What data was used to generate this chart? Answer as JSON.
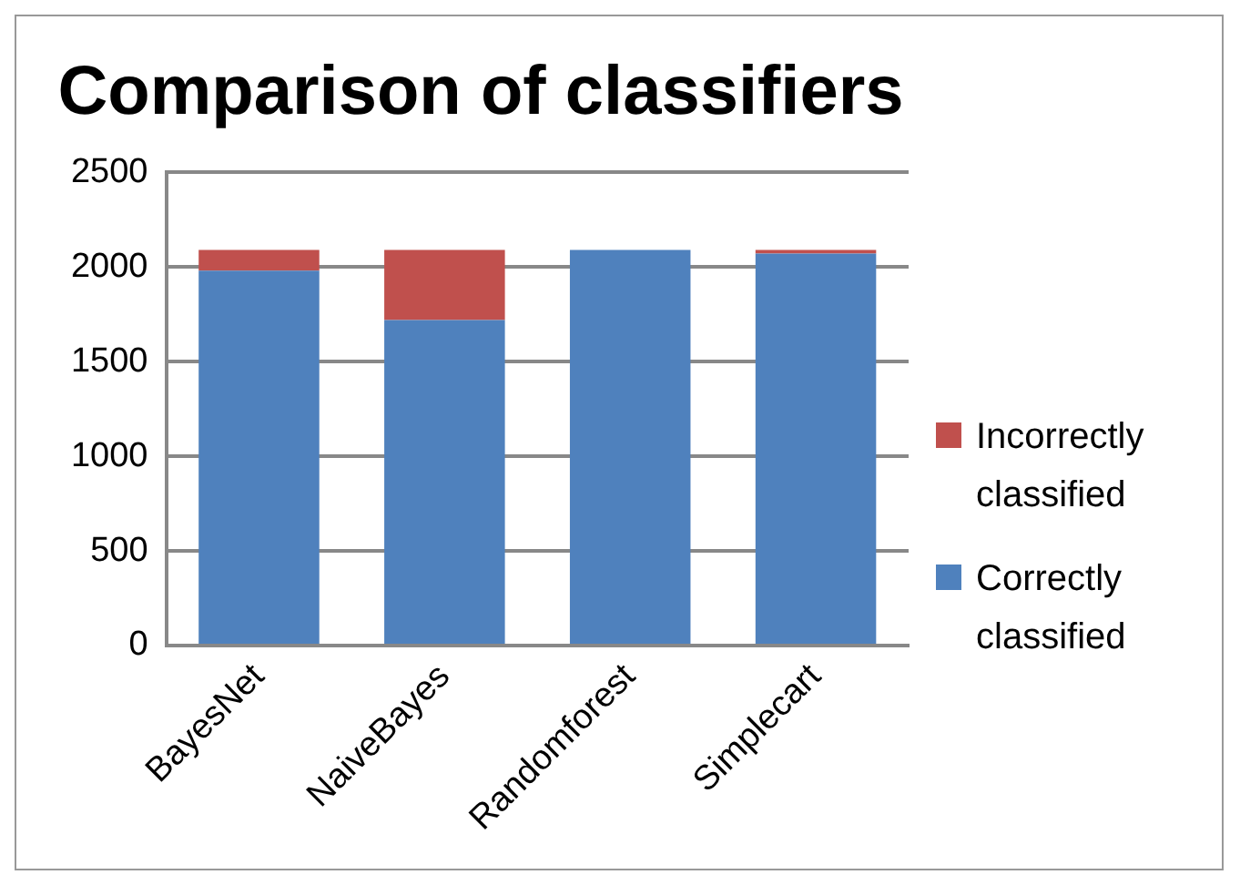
{
  "chart_data": {
    "type": "bar",
    "title": "Comparison of classifiers",
    "categories": [
      "BayesNet",
      "NaiveBayes",
      "Randomforest",
      "Simplecart"
    ],
    "stacked": true,
    "series": [
      {
        "name": "Correctly classified",
        "color": "#4f81bd",
        "values": [
          1980,
          1720,
          2090,
          2070
        ]
      },
      {
        "name": "Incorrectly classified",
        "color": "#c0504d",
        "values": [
          110,
          370,
          0,
          20
        ]
      }
    ],
    "ylim": [
      0,
      2500
    ],
    "yticks": [
      0,
      500,
      1000,
      1500,
      2000,
      2500
    ],
    "grid": "y",
    "legend": "right"
  }
}
